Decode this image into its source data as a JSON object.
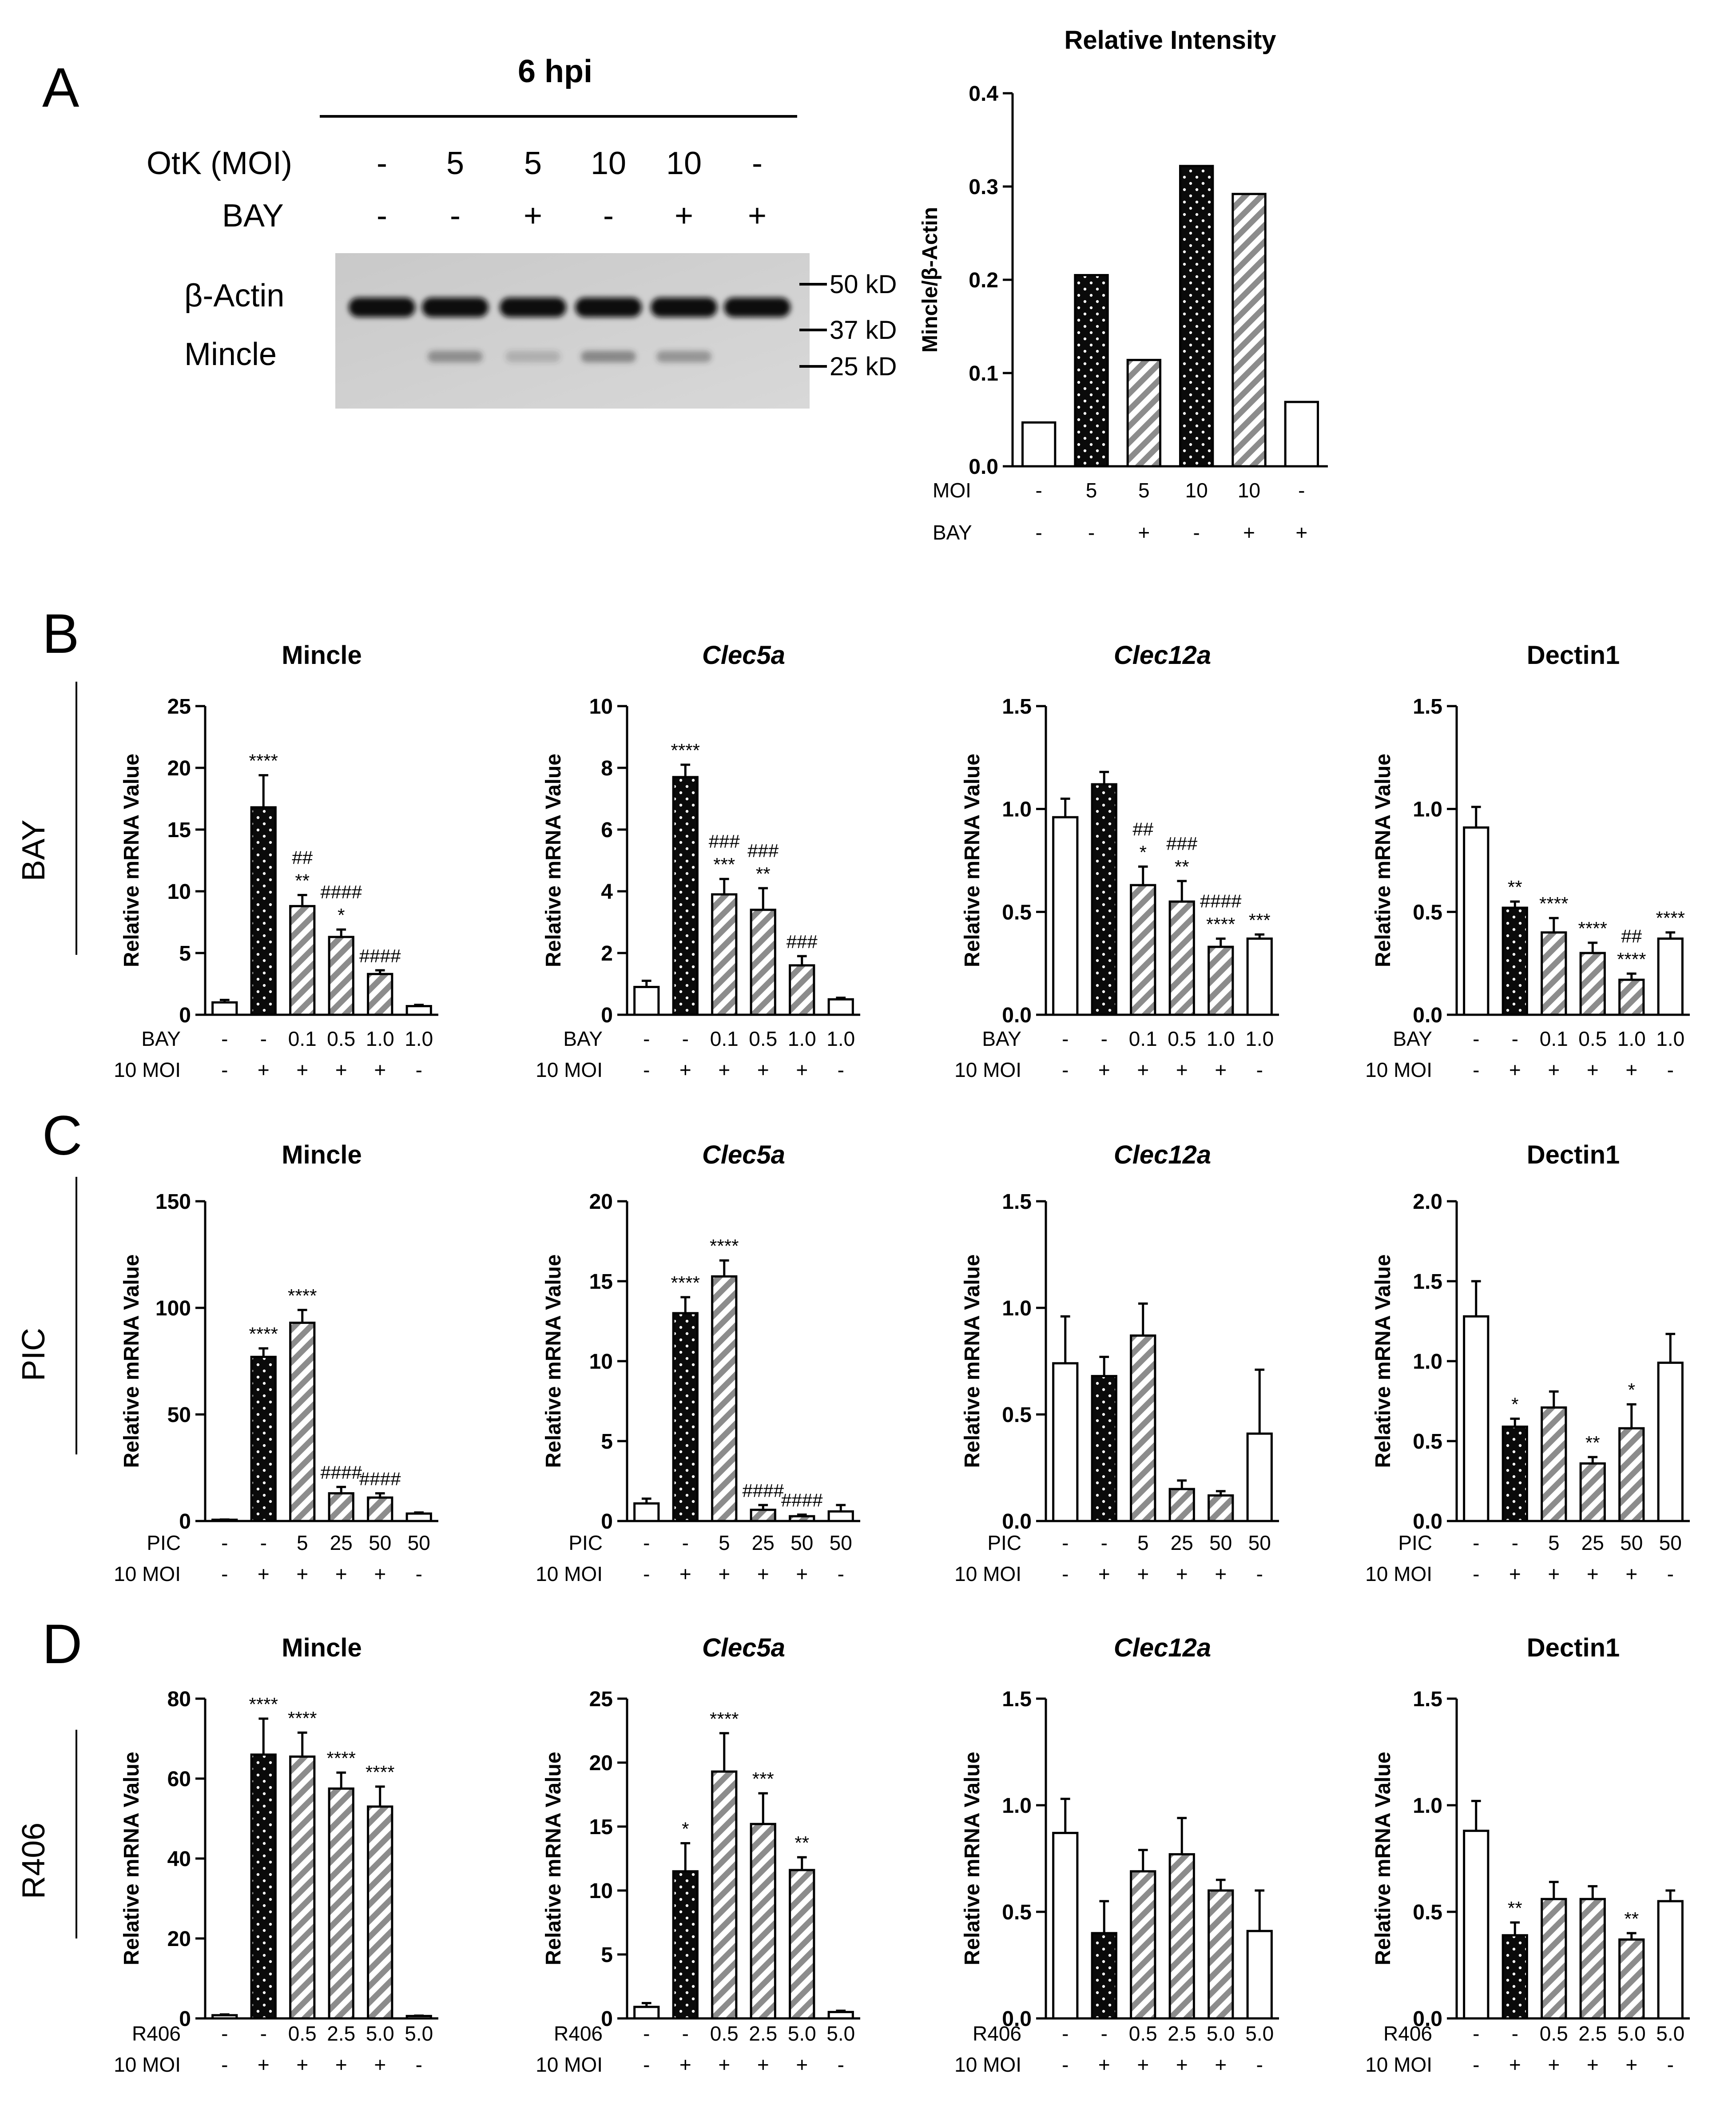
{
  "figure": {
    "panel_a": {
      "letter": "A",
      "blot": {
        "header": "6 hpi",
        "rows": [
          {
            "label": "OtK (MOI)",
            "values": [
              "-",
              "5",
              "5",
              "10",
              "10",
              "-"
            ]
          },
          {
            "label": "BAY",
            "values": [
              "-",
              "-",
              "+",
              "-",
              "+",
              "+"
            ]
          }
        ],
        "band_labels": [
          "β-Actin",
          "Mincle"
        ],
        "markers": [
          "50 kD",
          "37 kD",
          "25 kD"
        ]
      }
    },
    "panels": [
      {
        "letter": "B",
        "side_label": "BAY"
      },
      {
        "letter": "C",
        "side_label": "PIC"
      },
      {
        "letter": "D",
        "side_label": "R406"
      }
    ]
  },
  "colors": {
    "black_dotted": "#0a0a0a",
    "hatch_gray": "#8c8c8c",
    "white": "#ffffff",
    "axis": "#000000"
  },
  "chart_data": [
    {
      "id": "A-intensity",
      "type": "bar",
      "title": "Relative Intensity",
      "title_style": "bold",
      "ylabel": "Mincle/β-Actin",
      "ylim": [
        0,
        0.4
      ],
      "yticks": [
        "0.0",
        "0.1",
        "0.2",
        "0.3",
        "0.4"
      ],
      "fills": [
        "white",
        "dots",
        "hatch",
        "dots",
        "hatch",
        "white"
      ],
      "values": [
        0.047,
        0.205,
        0.114,
        0.322,
        0.292,
        0.069
      ],
      "errors": [
        0,
        0,
        0,
        0,
        0,
        0
      ],
      "sig": [
        "",
        "",
        "",
        "",
        "",
        ""
      ],
      "rows": [
        {
          "label": "MOI",
          "values": [
            "-",
            "5",
            "5",
            "10",
            "10",
            "-"
          ]
        },
        {
          "label": "BAY",
          "values": [
            "-",
            "-",
            "+",
            "-",
            "+",
            "+"
          ]
        }
      ]
    },
    {
      "id": "B-mincle",
      "type": "bar",
      "title": "Mincle",
      "title_style": "bold",
      "ylabel": "Relative mRNA Value",
      "ylim": [
        0,
        25
      ],
      "yticks": [
        "0",
        "5",
        "10",
        "15",
        "20",
        "25"
      ],
      "fills": [
        "white",
        "dots",
        "hatch",
        "hatch",
        "hatch",
        "white"
      ],
      "values": [
        1.0,
        16.8,
        8.8,
        6.3,
        3.3,
        0.7
      ],
      "errors": [
        0.2,
        2.6,
        0.9,
        0.6,
        0.3,
        0.1
      ],
      "sig": [
        "",
        "****",
        "##\n**",
        "####\n*",
        "####",
        ""
      ],
      "rows": [
        {
          "label": "BAY",
          "values": [
            "-",
            "-",
            "0.1",
            "0.5",
            "1.0",
            "1.0"
          ]
        },
        {
          "label": "10 MOI",
          "values": [
            "-",
            "+",
            "+",
            "+",
            "+",
            "-"
          ]
        }
      ]
    },
    {
      "id": "B-clec5a",
      "type": "bar",
      "title": "Clec5a",
      "title_style": "bold-italic",
      "ylabel": "Relative mRNA Value",
      "ylim": [
        0,
        10
      ],
      "yticks": [
        "0",
        "2",
        "4",
        "6",
        "8",
        "10"
      ],
      "fills": [
        "white",
        "dots",
        "hatch",
        "hatch",
        "hatch",
        "white"
      ],
      "values": [
        0.9,
        7.7,
        3.9,
        3.4,
        1.6,
        0.5
      ],
      "errors": [
        0.2,
        0.4,
        0.5,
        0.7,
        0.3,
        0.05
      ],
      "sig": [
        "",
        "****",
        "###\n***",
        "###\n**",
        "###",
        ""
      ],
      "rows": [
        {
          "label": "BAY",
          "values": [
            "-",
            "-",
            "0.1",
            "0.5",
            "1.0",
            "1.0"
          ]
        },
        {
          "label": "10 MOI",
          "values": [
            "-",
            "+",
            "+",
            "+",
            "+",
            "-"
          ]
        }
      ]
    },
    {
      "id": "B-clec12a",
      "type": "bar",
      "title": "Clec12a",
      "title_style": "bold-italic",
      "ylabel": "Relative mRNA Value",
      "ylim": [
        0,
        1.5
      ],
      "yticks": [
        "0.0",
        "0.5",
        "1.0",
        "1.5"
      ],
      "fills": [
        "white",
        "dots",
        "hatch",
        "hatch",
        "hatch",
        "white"
      ],
      "values": [
        0.96,
        1.12,
        0.63,
        0.55,
        0.33,
        0.37
      ],
      "errors": [
        0.09,
        0.06,
        0.09,
        0.1,
        0.04,
        0.02
      ],
      "sig": [
        "",
        "",
        "##\n*",
        "###\n**",
        "####\n****",
        "***"
      ],
      "rows": [
        {
          "label": "BAY",
          "values": [
            "-",
            "-",
            "0.1",
            "0.5",
            "1.0",
            "1.0"
          ]
        },
        {
          "label": "10 MOI",
          "values": [
            "-",
            "+",
            "+",
            "+",
            "+",
            "-"
          ]
        }
      ]
    },
    {
      "id": "B-dectin1",
      "type": "bar",
      "title": "Dectin1",
      "title_style": "bold",
      "ylabel": "Relative mRNA Value",
      "ylim": [
        0,
        1.5
      ],
      "yticks": [
        "0.0",
        "0.5",
        "1.0",
        "1.5"
      ],
      "fills": [
        "white",
        "dots",
        "hatch",
        "hatch",
        "hatch",
        "white"
      ],
      "values": [
        0.91,
        0.52,
        0.4,
        0.3,
        0.17,
        0.37
      ],
      "errors": [
        0.1,
        0.03,
        0.07,
        0.05,
        0.03,
        0.03
      ],
      "sig": [
        "",
        "**",
        "****",
        "****",
        "##\n****",
        "****"
      ],
      "rows": [
        {
          "label": "BAY",
          "values": [
            "-",
            "-",
            "0.1",
            "0.5",
            "1.0",
            "1.0"
          ]
        },
        {
          "label": "10 MOI",
          "values": [
            "-",
            "+",
            "+",
            "+",
            "+",
            "-"
          ]
        }
      ]
    },
    {
      "id": "C-mincle",
      "type": "bar",
      "title": "Mincle",
      "title_style": "bold",
      "ylabel": "Relative mRNA Value",
      "ylim": [
        0,
        150
      ],
      "yticks": [
        "0",
        "50",
        "100",
        "150"
      ],
      "fills": [
        "white",
        "dots",
        "hatch",
        "hatch",
        "hatch",
        "white"
      ],
      "values": [
        0.6,
        77,
        93,
        13,
        11,
        3.5
      ],
      "errors": [
        0.1,
        4,
        6,
        3,
        2,
        0.5
      ],
      "sig": [
        "",
        "****",
        "****",
        "####",
        "####",
        ""
      ],
      "rows": [
        {
          "label": "PIC",
          "values": [
            "-",
            "-",
            "5",
            "25",
            "50",
            "50"
          ]
        },
        {
          "label": "10 MOI",
          "values": [
            "-",
            "+",
            "+",
            "+",
            "+",
            "-"
          ]
        }
      ]
    },
    {
      "id": "C-clec5a",
      "type": "bar",
      "title": "Clec5a",
      "title_style": "bold-italic",
      "ylabel": "Relative mRNA Value",
      "ylim": [
        0,
        20
      ],
      "yticks": [
        "0",
        "5",
        "10",
        "15",
        "20"
      ],
      "fills": [
        "white",
        "dots",
        "hatch",
        "hatch",
        "hatch",
        "white"
      ],
      "values": [
        1.1,
        13.0,
        15.3,
        0.7,
        0.3,
        0.6
      ],
      "errors": [
        0.3,
        1.0,
        1.0,
        0.3,
        0.1,
        0.4
      ],
      "sig": [
        "",
        "****",
        "****",
        "####",
        "####",
        ""
      ],
      "rows": [
        {
          "label": "PIC",
          "values": [
            "-",
            "-",
            "5",
            "25",
            "50",
            "50"
          ]
        },
        {
          "label": "10 MOI",
          "values": [
            "-",
            "+",
            "+",
            "+",
            "+",
            "-"
          ]
        }
      ]
    },
    {
      "id": "C-clec12a",
      "type": "bar",
      "title": "Clec12a",
      "title_style": "bold-italic",
      "ylabel": "Relative mRNA Value",
      "ylim": [
        0,
        1.5
      ],
      "yticks": [
        "0.0",
        "0.5",
        "1.0",
        "1.5"
      ],
      "fills": [
        "white",
        "dots",
        "hatch",
        "hatch",
        "hatch",
        "white"
      ],
      "values": [
        0.74,
        0.68,
        0.87,
        0.15,
        0.12,
        0.41
      ],
      "errors": [
        0.22,
        0.09,
        0.15,
        0.04,
        0.02,
        0.3
      ],
      "sig": [
        "",
        "",
        "",
        "",
        "",
        ""
      ],
      "rows": [
        {
          "label": "PIC",
          "values": [
            "-",
            "-",
            "5",
            "25",
            "50",
            "50"
          ]
        },
        {
          "label": "10 MOI",
          "values": [
            "-",
            "+",
            "+",
            "+",
            "+",
            "-"
          ]
        }
      ]
    },
    {
      "id": "C-dectin1",
      "type": "bar",
      "title": "Dectin1",
      "title_style": "bold",
      "ylabel": "Relative mRNA Value",
      "ylim": [
        0,
        2.0
      ],
      "yticks": [
        "0.0",
        "0.5",
        "1.0",
        "1.5",
        "2.0"
      ],
      "fills": [
        "white",
        "dots",
        "hatch",
        "hatch",
        "hatch",
        "white"
      ],
      "values": [
        1.28,
        0.59,
        0.71,
        0.36,
        0.58,
        0.99
      ],
      "errors": [
        0.22,
        0.05,
        0.1,
        0.04,
        0.15,
        0.18
      ],
      "sig": [
        "",
        "*",
        "",
        "**",
        "*",
        ""
      ],
      "rows": [
        {
          "label": "PIC",
          "values": [
            "-",
            "-",
            "5",
            "25",
            "50",
            "50"
          ]
        },
        {
          "label": "10 MOI",
          "values": [
            "-",
            "+",
            "+",
            "+",
            "+",
            "-"
          ]
        }
      ]
    },
    {
      "id": "D-mincle",
      "type": "bar",
      "title": "Mincle",
      "title_style": "bold",
      "ylabel": "Relative mRNA Value",
      "ylim": [
        0,
        80
      ],
      "yticks": [
        "0",
        "20",
        "40",
        "60",
        "80"
      ],
      "fills": [
        "white",
        "dots",
        "hatch",
        "hatch",
        "hatch",
        "white"
      ],
      "values": [
        0.8,
        66,
        65.5,
        57.5,
        53,
        0.6
      ],
      "errors": [
        0.2,
        9,
        6,
        4,
        5,
        0.1
      ],
      "sig": [
        "",
        "****",
        "****",
        "****",
        "****",
        ""
      ],
      "rows": [
        {
          "label": "R406",
          "values": [
            "-",
            "-",
            "0.5",
            "2.5",
            "5.0",
            "5.0"
          ]
        },
        {
          "label": "10 MOI",
          "values": [
            "-",
            "+",
            "+",
            "+",
            "+",
            "-"
          ]
        }
      ]
    },
    {
      "id": "D-clec5a",
      "type": "bar",
      "title": "Clec5a",
      "title_style": "bold-italic",
      "ylabel": "Relative mRNA Value",
      "ylim": [
        0,
        25
      ],
      "yticks": [
        "0",
        "5",
        "10",
        "15",
        "20",
        "25"
      ],
      "fills": [
        "white",
        "dots",
        "hatch",
        "hatch",
        "hatch",
        "white"
      ],
      "values": [
        0.9,
        11.5,
        19.3,
        15.2,
        11.6,
        0.5
      ],
      "errors": [
        0.3,
        2.2,
        3.0,
        2.4,
        1.0,
        0.1
      ],
      "sig": [
        "",
        "*",
        "****",
        "***",
        "**",
        ""
      ],
      "rows": [
        {
          "label": "R406",
          "values": [
            "-",
            "-",
            "0.5",
            "2.5",
            "5.0",
            "5.0"
          ]
        },
        {
          "label": "10 MOI",
          "values": [
            "-",
            "+",
            "+",
            "+",
            "+",
            "-"
          ]
        }
      ]
    },
    {
      "id": "D-clec12a",
      "type": "bar",
      "title": "Clec12a",
      "title_style": "bold-italic",
      "ylabel": "Relative mRNA Value",
      "ylim": [
        0,
        1.5
      ],
      "yticks": [
        "0.0",
        "0.5",
        "1.0",
        "1.5"
      ],
      "fills": [
        "white",
        "dots",
        "hatch",
        "hatch",
        "hatch",
        "white"
      ],
      "values": [
        0.87,
        0.4,
        0.69,
        0.77,
        0.6,
        0.41
      ],
      "errors": [
        0.16,
        0.15,
        0.1,
        0.17,
        0.05,
        0.19
      ],
      "sig": [
        "",
        "",
        "",
        "",
        "",
        ""
      ],
      "rows": [
        {
          "label": "R406",
          "values": [
            "-",
            "-",
            "0.5",
            "2.5",
            "5.0",
            "5.0"
          ]
        },
        {
          "label": "10 MOI",
          "values": [
            "-",
            "+",
            "+",
            "+",
            "+",
            "-"
          ]
        }
      ]
    },
    {
      "id": "D-dectin1",
      "type": "bar",
      "title": "Dectin1",
      "title_style": "bold",
      "ylabel": "Relative mRNA Value",
      "ylim": [
        0,
        1.5
      ],
      "yticks": [
        "0.0",
        "0.5",
        "1.0",
        "1.5"
      ],
      "fills": [
        "white",
        "dots",
        "hatch",
        "hatch",
        "hatch",
        "white"
      ],
      "values": [
        0.88,
        0.39,
        0.56,
        0.56,
        0.37,
        0.55
      ],
      "errors": [
        0.14,
        0.06,
        0.08,
        0.06,
        0.03,
        0.05
      ],
      "sig": [
        "",
        "**",
        "",
        "",
        "**",
        ""
      ],
      "rows": [
        {
          "label": "R406",
          "values": [
            "-",
            "-",
            "0.5",
            "2.5",
            "5.0",
            "5.0"
          ]
        },
        {
          "label": "10 MOI",
          "values": [
            "-",
            "+",
            "+",
            "+",
            "+",
            "-"
          ]
        }
      ]
    }
  ]
}
